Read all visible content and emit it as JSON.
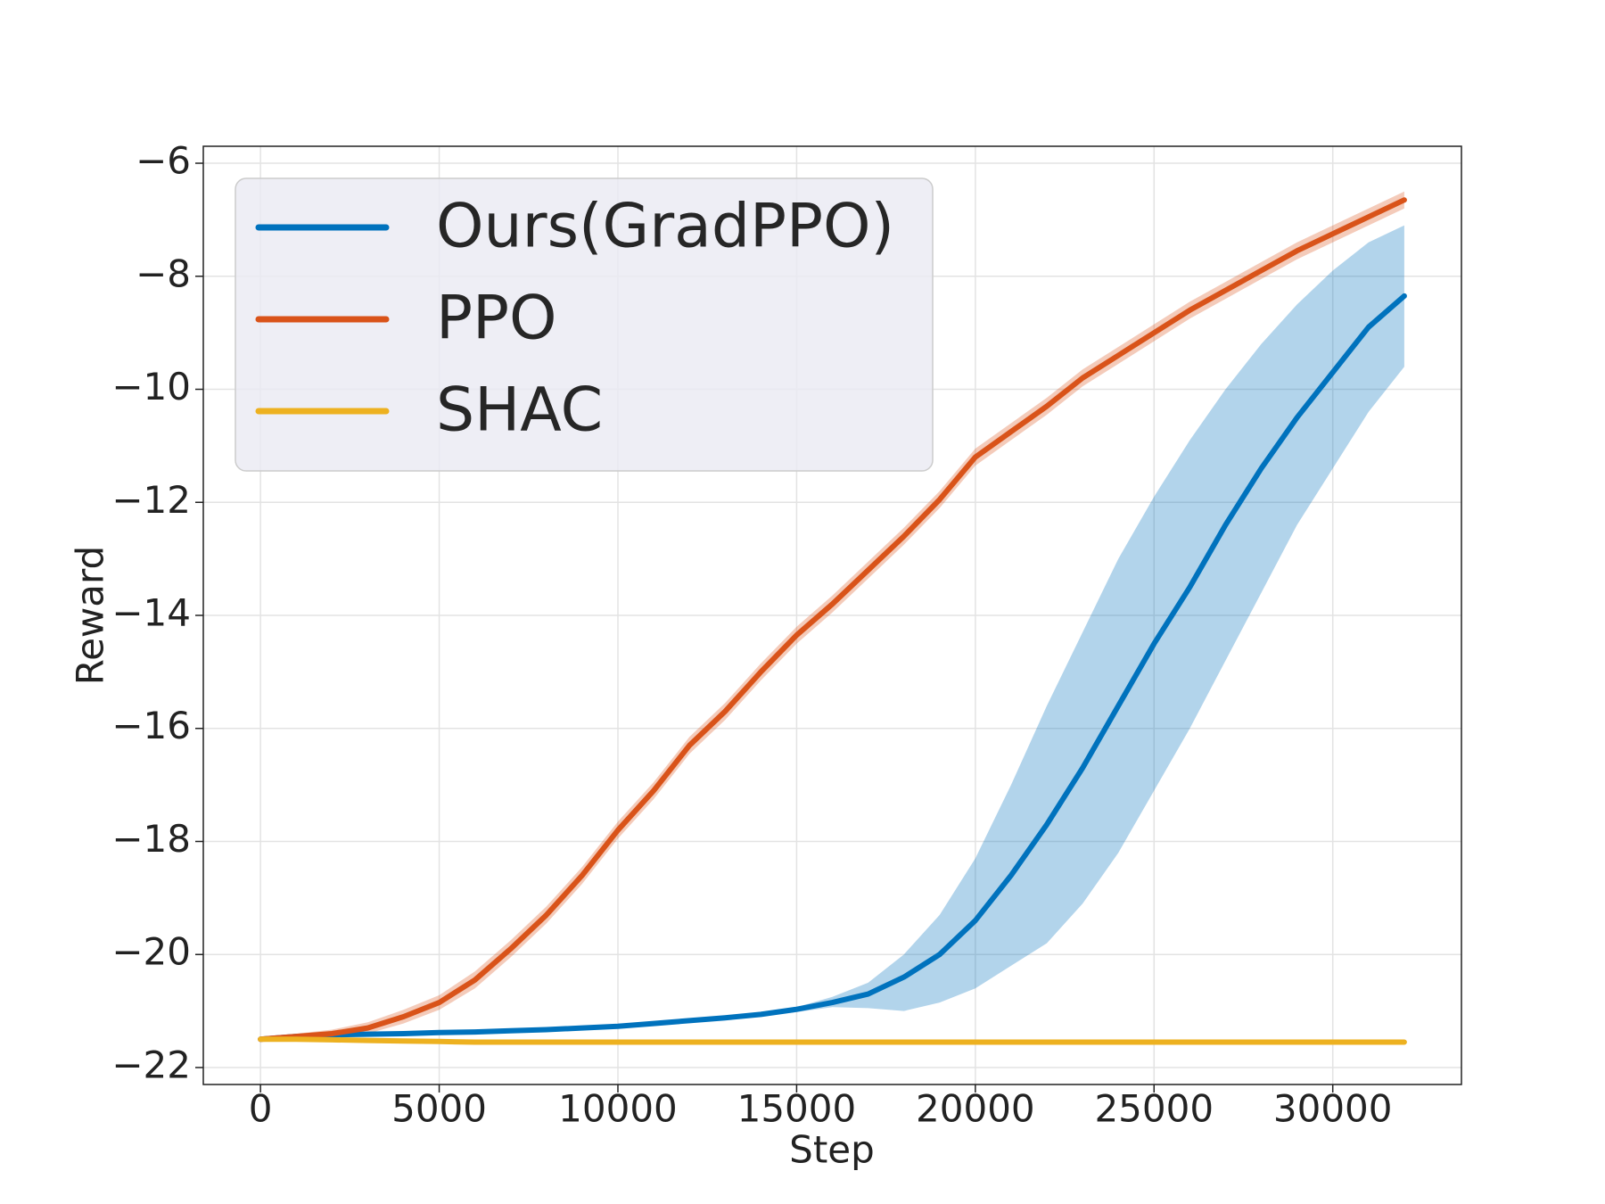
{
  "chart_data": {
    "type": "line",
    "x_label": "Step",
    "y_label": "Reward",
    "x": [
      0,
      1000,
      2000,
      3000,
      4000,
      5000,
      6000,
      7000,
      8000,
      9000,
      10000,
      11000,
      12000,
      13000,
      14000,
      15000,
      16000,
      17000,
      18000,
      19000,
      20000,
      21000,
      22000,
      23000,
      24000,
      25000,
      26000,
      27000,
      28000,
      29000,
      30000,
      31000,
      32000
    ],
    "series": [
      {
        "name": "Ours(GradPPO)",
        "color": "#0072bd",
        "values": [
          -21.5,
          -21.45,
          -21.42,
          -21.41,
          -21.4,
          -21.38,
          -21.37,
          -21.35,
          -21.33,
          -21.3,
          -21.27,
          -21.22,
          -21.17,
          -21.12,
          -21.06,
          -20.97,
          -20.85,
          -20.7,
          -20.4,
          -20.0,
          -19.4,
          -18.6,
          -17.7,
          -16.7,
          -15.6,
          -14.5,
          -13.5,
          -12.4,
          -11.4,
          -10.5,
          -9.7,
          -8.9,
          -8.35
        ],
        "upper": [
          -21.48,
          -21.43,
          -21.4,
          -21.39,
          -21.38,
          -21.36,
          -21.35,
          -21.33,
          -21.31,
          -21.28,
          -21.25,
          -21.2,
          -21.15,
          -21.1,
          -21.03,
          -20.93,
          -20.75,
          -20.5,
          -20.0,
          -19.3,
          -18.3,
          -17.0,
          -15.6,
          -14.3,
          -13.0,
          -11.9,
          -10.9,
          -10.0,
          -9.2,
          -8.5,
          -7.9,
          -7.4,
          -7.1
        ],
        "lower": [
          -21.52,
          -21.47,
          -21.44,
          -21.43,
          -21.42,
          -21.4,
          -21.39,
          -21.37,
          -21.35,
          -21.32,
          -21.29,
          -21.24,
          -21.19,
          -21.14,
          -21.09,
          -21.02,
          -20.93,
          -20.95,
          -21.0,
          -20.85,
          -20.6,
          -20.2,
          -19.8,
          -19.1,
          -18.2,
          -17.1,
          -16.0,
          -14.8,
          -13.6,
          -12.4,
          -11.4,
          -10.4,
          -9.6
        ]
      },
      {
        "name": "PPO",
        "color": "#d95319",
        "values": [
          -21.5,
          -21.45,
          -21.4,
          -21.3,
          -21.1,
          -20.85,
          -20.45,
          -19.9,
          -19.3,
          -18.6,
          -17.8,
          -17.1,
          -16.3,
          -15.7,
          -15.0,
          -14.35,
          -13.8,
          -13.2,
          -12.6,
          -11.95,
          -11.2,
          -10.75,
          -10.3,
          -9.8,
          -9.4,
          -9.0,
          -8.6,
          -8.25,
          -7.9,
          -7.55,
          -7.25,
          -6.95,
          -6.65
        ],
        "upper": [
          -21.45,
          -21.4,
          -21.33,
          -21.2,
          -20.98,
          -20.72,
          -20.3,
          -19.75,
          -19.15,
          -18.45,
          -17.65,
          -16.95,
          -16.15,
          -15.55,
          -14.85,
          -14.2,
          -13.65,
          -13.05,
          -12.45,
          -11.8,
          -11.05,
          -10.6,
          -10.15,
          -9.65,
          -9.25,
          -8.85,
          -8.45,
          -8.1,
          -7.75,
          -7.4,
          -7.1,
          -6.8,
          -6.5
        ],
        "lower": [
          -21.55,
          -21.5,
          -21.47,
          -21.4,
          -21.22,
          -20.98,
          -20.6,
          -20.05,
          -19.45,
          -18.75,
          -17.95,
          -17.25,
          -16.45,
          -15.85,
          -15.15,
          -14.5,
          -13.95,
          -13.35,
          -12.75,
          -12.1,
          -11.35,
          -10.9,
          -10.45,
          -9.95,
          -9.55,
          -9.15,
          -8.75,
          -8.4,
          -8.05,
          -7.7,
          -7.4,
          -7.1,
          -6.8
        ]
      },
      {
        "name": "SHAC",
        "color": "#edb120",
        "values": [
          -21.5,
          -21.5,
          -21.51,
          -21.52,
          -21.53,
          -21.54,
          -21.55,
          -21.55,
          -21.55,
          -21.55,
          -21.55,
          -21.55,
          -21.55,
          -21.55,
          -21.55,
          -21.55,
          -21.55,
          -21.55,
          -21.55,
          -21.55,
          -21.55,
          -21.55,
          -21.55,
          -21.55,
          -21.55,
          -21.55,
          -21.55,
          -21.55,
          -21.55,
          -21.55,
          -21.55,
          -21.55,
          -21.55
        ]
      }
    ],
    "xlim": [
      -1600,
      33600
    ],
    "ylim": [
      -22.3,
      -5.7
    ],
    "xticks": [
      0,
      5000,
      10000,
      15000,
      20000,
      25000,
      30000
    ],
    "yticks": [
      {
        "value": -22,
        "label": "−22"
      },
      {
        "value": -20,
        "label": "−20"
      },
      {
        "value": -18,
        "label": "−18"
      },
      {
        "value": -16,
        "label": "−16"
      },
      {
        "value": -14,
        "label": "−14"
      },
      {
        "value": -12,
        "label": "−12"
      },
      {
        "value": -10,
        "label": "−10"
      },
      {
        "value": -8,
        "label": "−8"
      },
      {
        "value": -6,
        "label": "−6"
      }
    ],
    "grid": true,
    "legend": "upper left"
  }
}
